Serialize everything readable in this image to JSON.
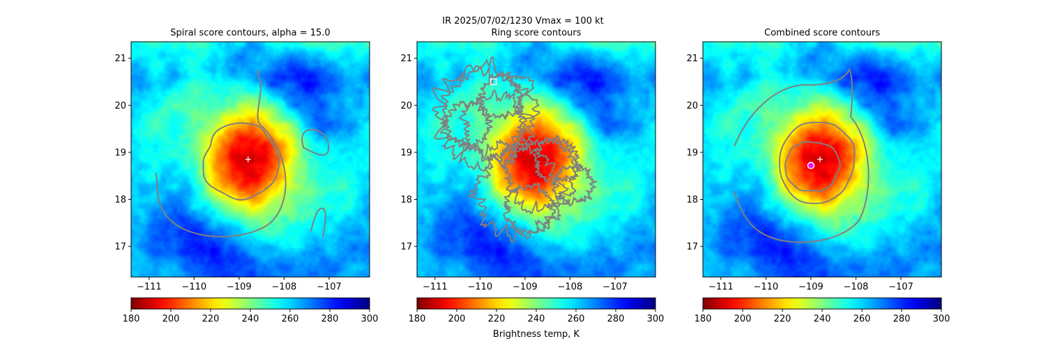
{
  "figure": {
    "suptitle": "IR  2025/07/02/1230    Vmax = 100 kt",
    "colorbar_label": "Brightness temp, K"
  },
  "chart_data": [
    {
      "type": "heatmap",
      "title": "Spiral score contours, alpha = 15.0",
      "xlim": [
        -111.4,
        -106.1
      ],
      "ylim": [
        16.35,
        21.35
      ],
      "xticks": [
        -111,
        -110,
        -109,
        -108,
        -107
      ],
      "xtick_labels": [
        "−111",
        "−110",
        "−109",
        "−108",
        "−107"
      ],
      "yticks": [
        17,
        18,
        19,
        20,
        21
      ],
      "ytick_labels": [
        "17",
        "18",
        "19",
        "20",
        "21"
      ],
      "colorbar": {
        "min": 180,
        "max": 300,
        "ticks": [
          180,
          200,
          220,
          240,
          260,
          280,
          300
        ],
        "colormap": "jet_r"
      },
      "storm_center": {
        "lon": -108.8,
        "lat": 18.85
      },
      "markers": [
        {
          "type": "plus",
          "lon": -108.8,
          "lat": 18.85,
          "color": "#ffffff"
        }
      ]
    },
    {
      "type": "heatmap",
      "title": "Ring score contours",
      "xlim": [
        -111.4,
        -106.1
      ],
      "ylim": [
        16.35,
        21.35
      ],
      "xticks": [
        -111,
        -110,
        -109,
        -108,
        -107
      ],
      "xtick_labels": [
        "−111",
        "−110",
        "−109",
        "−108",
        "−107"
      ],
      "yticks": [
        17,
        18,
        19,
        20,
        21
      ],
      "ytick_labels": [
        "17",
        "18",
        "19",
        "20",
        "21"
      ],
      "colorbar": {
        "min": 180,
        "max": 300,
        "ticks": [
          180,
          200,
          220,
          240,
          260,
          280,
          300
        ],
        "colormap": "jet_r"
      },
      "storm_center": {
        "lon": -108.8,
        "lat": 18.85
      },
      "markers": [
        {
          "type": "square",
          "lon": -109.7,
          "lat": 20.5,
          "color": "#ffffff"
        }
      ]
    },
    {
      "type": "heatmap",
      "title": "Combined score contours",
      "xlim": [
        -111.4,
        -106.1
      ],
      "ylim": [
        16.35,
        21.35
      ],
      "xticks": [
        -111,
        -110,
        -109,
        -108,
        -107
      ],
      "xtick_labels": [
        "−111",
        "−110",
        "−109",
        "−108",
        "−107"
      ],
      "yticks": [
        17,
        18,
        19,
        20,
        21
      ],
      "ytick_labels": [
        "17",
        "18",
        "19",
        "20",
        "21"
      ],
      "colorbar": {
        "min": 180,
        "max": 300,
        "ticks": [
          180,
          200,
          220,
          240,
          260,
          280,
          300
        ],
        "colormap": "jet_r"
      },
      "storm_center": {
        "lon": -108.8,
        "lat": 18.85
      },
      "markers": [
        {
          "type": "plus",
          "lon": -108.8,
          "lat": 18.85,
          "color": "#ffffff"
        },
        {
          "type": "circle",
          "lon": -109.0,
          "lat": 18.72,
          "color": "#ff00ff"
        }
      ]
    }
  ]
}
